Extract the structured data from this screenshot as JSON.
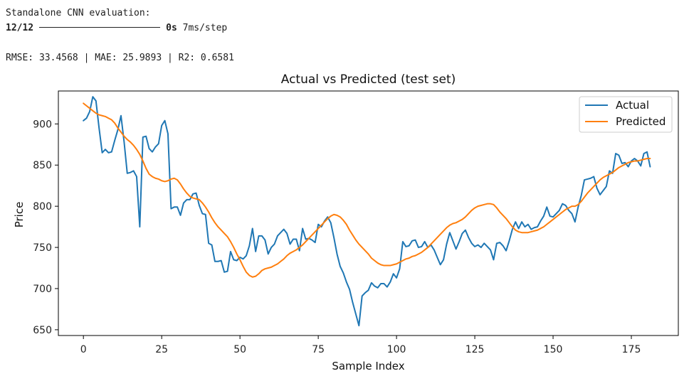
{
  "console": {
    "heading": "Standalone CNN evaluation:",
    "progress_count": "12/12",
    "progress_time": "0s",
    "progress_step": "7ms/step",
    "metrics": "RMSE: 33.4568 | MAE: 25.9893 | R2: 0.6581"
  },
  "chart_data": {
    "type": "line",
    "title": "Actual vs Predicted (test set)",
    "xlabel": "Sample Index",
    "ylabel": "Price",
    "xlim": [
      -8,
      190
    ],
    "ylim": [
      643,
      940
    ],
    "xticks": [
      0,
      25,
      50,
      75,
      100,
      125,
      150,
      175
    ],
    "yticks": [
      650,
      700,
      750,
      800,
      850,
      900
    ],
    "grid": false,
    "legend_position": "upper right",
    "series": [
      {
        "name": "Actual",
        "color": "#1f77b4",
        "values": [
          904,
          907,
          915,
          933,
          928,
          895,
          865,
          869,
          865,
          866,
          880,
          893,
          910,
          878,
          840,
          841,
          843,
          836,
          775,
          884,
          885,
          870,
          866,
          872,
          876,
          898,
          904,
          888,
          797,
          799,
          799,
          789,
          804,
          808,
          808,
          815,
          816,
          801,
          791,
          790,
          755,
          753,
          733,
          733,
          734,
          720,
          721,
          745,
          735,
          734,
          738,
          736,
          740,
          752,
          773,
          745,
          764,
          764,
          759,
          742,
          750,
          754,
          764,
          768,
          772,
          767,
          754,
          760,
          760,
          746,
          773,
          760,
          761,
          759,
          756,
          778,
          775,
          782,
          787,
          780,
          762,
          742,
          727,
          719,
          708,
          699,
          683,
          669,
          655,
          691,
          695,
          698,
          707,
          703,
          701,
          706,
          706,
          702,
          708,
          718,
          713,
          724,
          757,
          751,
          752,
          758,
          759,
          750,
          751,
          757,
          750,
          753,
          747,
          738,
          729,
          735,
          754,
          768,
          758,
          748,
          757,
          767,
          771,
          762,
          755,
          751,
          753,
          750,
          755,
          751,
          747,
          735,
          755,
          756,
          752,
          746,
          758,
          772,
          781,
          773,
          781,
          775,
          778,
          772,
          774,
          775,
          782,
          788,
          799,
          788,
          787,
          791,
          795,
          803,
          801,
          795,
          791,
          781,
          799,
          813,
          832,
          833,
          834,
          836,
          822,
          814,
          819,
          824,
          843,
          840,
          864,
          862,
          852,
          853,
          848,
          855,
          858,
          855,
          849,
          864,
          866,
          848
        ]
      },
      {
        "name": "Predicted",
        "color": "#ff7f0e",
        "values": [
          925,
          922,
          919,
          916,
          913,
          911,
          910,
          909,
          907,
          905,
          901,
          895,
          890,
          885,
          881,
          878,
          874,
          869,
          863,
          855,
          846,
          839,
          836,
          834,
          833,
          831,
          830,
          831,
          833,
          834,
          832,
          827,
          821,
          816,
          812,
          810,
          809,
          808,
          804,
          799,
          793,
          786,
          780,
          775,
          771,
          767,
          763,
          757,
          750,
          742,
          735,
          727,
          720,
          716,
          714,
          715,
          718,
          722,
          724,
          725,
          726,
          728,
          730,
          733,
          736,
          740,
          743,
          745,
          747,
          750,
          753,
          757,
          761,
          765,
          769,
          773,
          777,
          781,
          785,
          788,
          790,
          789,
          787,
          783,
          778,
          771,
          765,
          759,
          754,
          750,
          746,
          742,
          737,
          734,
          731,
          729,
          728,
          728,
          728,
          729,
          730,
          732,
          734,
          736,
          737,
          739,
          740,
          742,
          744,
          747,
          750,
          754,
          758,
          762,
          766,
          770,
          774,
          777,
          779,
          780,
          782,
          784,
          787,
          791,
          795,
          798,
          800,
          801,
          802,
          803,
          803,
          802,
          798,
          793,
          789,
          785,
          780,
          775,
          771,
          769,
          768,
          768,
          768,
          769,
          770,
          771,
          773,
          775,
          778,
          781,
          784,
          787,
          790,
          793,
          796,
          798,
          800,
          800,
          802,
          806,
          811,
          816,
          820,
          824,
          828,
          832,
          835,
          837,
          839,
          841,
          844,
          847,
          849,
          851,
          853,
          854,
          855,
          855,
          856,
          857,
          858,
          858
        ]
      }
    ]
  }
}
